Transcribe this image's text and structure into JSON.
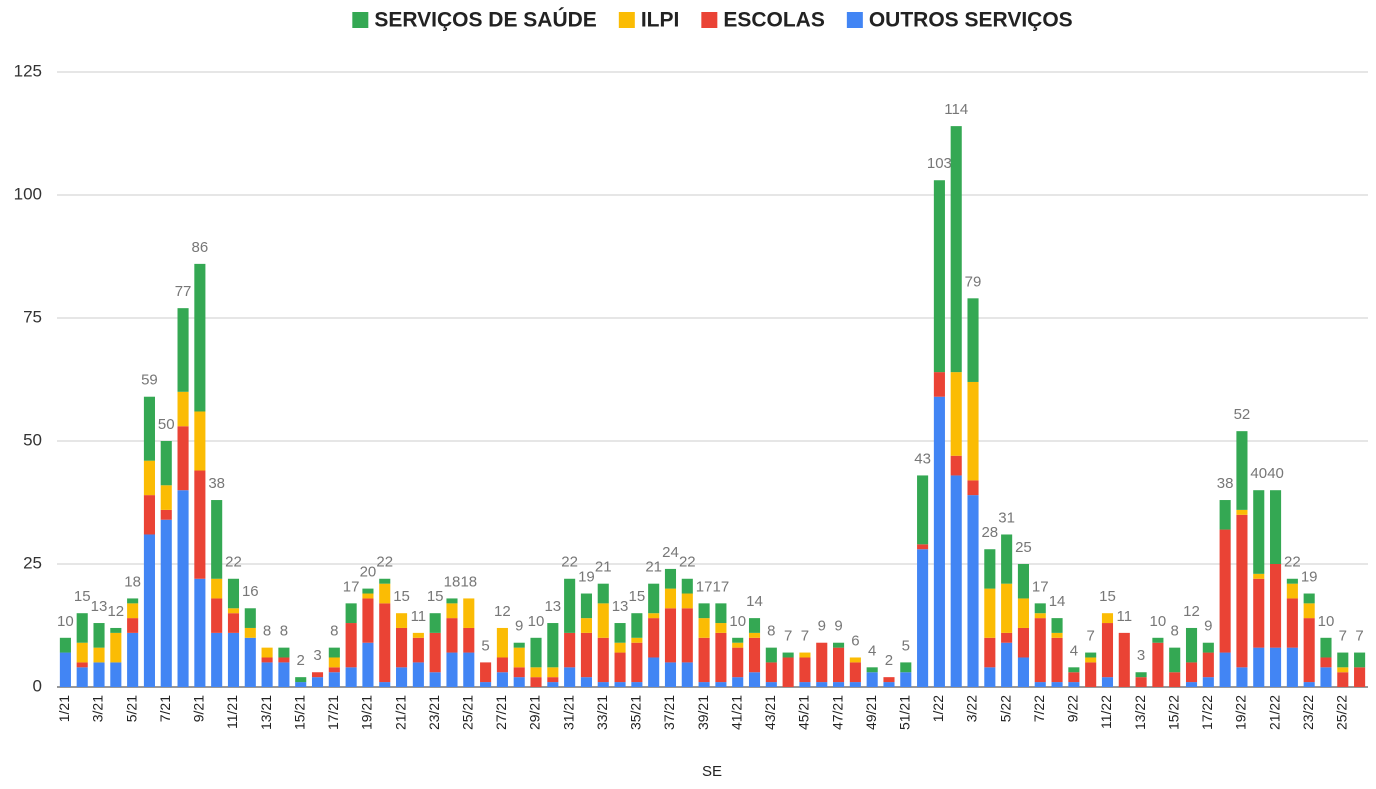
{
  "chart_data": {
    "type": "stacked-bar",
    "x_label": "SE",
    "categories": [
      "1/21",
      null,
      "3/21",
      null,
      "5/21",
      null,
      "7/21",
      null,
      "9/21",
      null,
      "11/21",
      null,
      "13/21",
      null,
      "15/21",
      null,
      "17/21",
      null,
      "19/21",
      null,
      "21/21",
      null,
      "23/21",
      null,
      "25/21",
      null,
      "27/21",
      null,
      "29/21",
      null,
      "31/21",
      null,
      "33/21",
      null,
      "35/21",
      null,
      "37/21",
      null,
      "39/21",
      null,
      "41/21",
      null,
      "43/21",
      null,
      "45/21",
      null,
      "47/21",
      null,
      "49/21",
      null,
      "51/21",
      null,
      "1/22",
      null,
      "3/22",
      null,
      "5/22",
      null,
      "7/22",
      null,
      "9/22",
      null,
      "11/22",
      null,
      "13/22",
      null,
      "15/22",
      null,
      "17/22",
      null,
      "19/22",
      null,
      "21/22",
      null,
      "23/22",
      null,
      "25/22",
      null
    ],
    "series": [
      {
        "name": "SERVIÇOS DE SAÚDE",
        "color": "#34a853",
        "values": [
          3,
          6,
          5,
          1,
          1,
          13,
          9,
          17,
          30,
          16,
          6,
          4,
          0,
          2,
          1,
          0,
          2,
          4,
          1,
          1,
          0,
          0,
          4,
          1,
          0,
          0,
          0,
          1,
          6,
          9,
          11,
          5,
          4,
          4,
          5,
          6,
          4,
          3,
          3,
          4,
          1,
          3,
          3,
          1,
          0,
          0,
          1,
          0,
          1,
          0,
          2,
          14,
          39,
          50,
          17,
          8,
          10,
          7,
          2,
          3,
          1,
          1,
          0,
          0,
          1,
          1,
          5,
          7,
          2,
          6,
          16,
          17,
          15,
          1,
          2,
          4,
          3,
          3
        ]
      },
      {
        "name": "ILPI",
        "color": "#fbbc04",
        "values": [
          0,
          4,
          3,
          6,
          3,
          7,
          5,
          7,
          12,
          4,
          1,
          2,
          2,
          0,
          0,
          0,
          2,
          0,
          1,
          4,
          3,
          1,
          0,
          3,
          6,
          0,
          6,
          4,
          2,
          2,
          0,
          3,
          7,
          2,
          1,
          1,
          4,
          3,
          4,
          2,
          1,
          1,
          0,
          0,
          1,
          0,
          0,
          1,
          0,
          0,
          0,
          0,
          0,
          17,
          20,
          10,
          10,
          6,
          1,
          1,
          0,
          1,
          2,
          0,
          0,
          0,
          0,
          0,
          0,
          0,
          1,
          1,
          0,
          3,
          3,
          0,
          1,
          0
        ]
      },
      {
        "name": "ESCOLAS",
        "color": "#ea4335",
        "values": [
          0,
          1,
          0,
          0,
          3,
          8,
          2,
          13,
          22,
          7,
          4,
          0,
          1,
          1,
          0,
          1,
          1,
          9,
          9,
          16,
          8,
          5,
          8,
          7,
          5,
          4,
          3,
          2,
          2,
          1,
          7,
          9,
          9,
          6,
          8,
          8,
          11,
          11,
          9,
          10,
          6,
          7,
          4,
          6,
          5,
          8,
          7,
          4,
          0,
          1,
          0,
          1,
          5,
          4,
          3,
          6,
          2,
          6,
          13,
          9,
          2,
          5,
          11,
          11,
          2,
          9,
          3,
          4,
          5,
          25,
          31,
          14,
          17,
          10,
          13,
          2,
          3,
          4
        ]
      },
      {
        "name": "OUTROS SERVIÇOS",
        "color": "#4285f4",
        "values": [
          7,
          4,
          5,
          5,
          11,
          31,
          34,
          40,
          22,
          11,
          11,
          10,
          5,
          5,
          1,
          2,
          3,
          4,
          9,
          1,
          4,
          5,
          3,
          7,
          7,
          1,
          3,
          2,
          0,
          1,
          4,
          2,
          1,
          1,
          1,
          6,
          5,
          5,
          1,
          1,
          2,
          3,
          1,
          0,
          1,
          1,
          1,
          1,
          3,
          1,
          3,
          28,
          59,
          43,
          39,
          4,
          9,
          6,
          1,
          1,
          1,
          0,
          2,
          0,
          0,
          0,
          0,
          1,
          2,
          7,
          4,
          8,
          8,
          8,
          1,
          4,
          0,
          0
        ]
      }
    ],
    "totals": [
      10,
      15,
      13,
      12,
      18,
      59,
      50,
      77,
      86,
      38,
      22,
      16,
      8,
      8,
      2,
      3,
      8,
      17,
      20,
      22,
      15,
      11,
      15,
      18,
      18,
      5,
      12,
      9,
      10,
      13,
      22,
      19,
      21,
      13,
      15,
      21,
      24,
      22,
      17,
      17,
      10,
      14,
      8,
      7,
      7,
      9,
      9,
      6,
      4,
      2,
      5,
      43,
      103,
      114,
      79,
      28,
      31,
      25,
      17,
      14,
      4,
      7,
      15,
      11,
      3,
      10,
      8,
      12,
      9,
      38,
      52,
      40,
      40,
      22,
      19,
      10,
      7,
      7
    ],
    "ylim": [
      0,
      125
    ],
    "yticks": [
      0,
      25,
      50,
      75,
      100,
      125
    ],
    "grid": true,
    "legend": "top"
  }
}
